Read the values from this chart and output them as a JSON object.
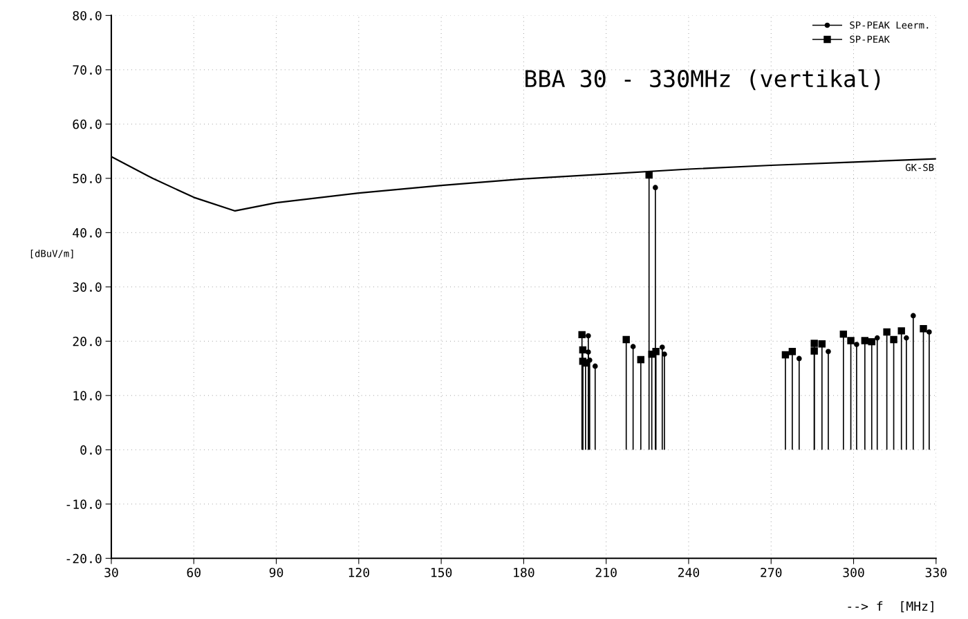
{
  "chart_data": {
    "type": "lollipop",
    "title": "BBA 30 - 330MHz (vertikal)",
    "xlabel": "--> f  [MHz]",
    "ylabel": "[dBuV/m]",
    "xlim": [
      30,
      330
    ],
    "ylim": [
      -20,
      80
    ],
    "xticks": [
      30,
      60,
      90,
      120,
      150,
      180,
      210,
      240,
      270,
      300,
      330
    ],
    "yticks": [
      {
        "value": -20,
        "label": "-20.0"
      },
      {
        "value": -10,
        "label": "-10.0"
      },
      {
        "value": 0,
        "label": "0.0"
      },
      {
        "value": 10,
        "label": "10.0"
      },
      {
        "value": 20,
        "label": "20.0"
      },
      {
        "value": 30,
        "label": "30.0"
      },
      {
        "value": 40,
        "label": "40.0"
      },
      {
        "value": 50,
        "label": "50.0"
      },
      {
        "value": 60,
        "label": "60.0"
      },
      {
        "value": 70,
        "label": "70.0"
      },
      {
        "value": 80,
        "label": "80.0"
      }
    ],
    "grid": true,
    "legend": "top right",
    "series": [
      {
        "name": "GK-SB",
        "type": "line",
        "color": "#000000",
        "marker": "none",
        "x": [
          30,
          45,
          60,
          75,
          90,
          120,
          150,
          180,
          210,
          240,
          270,
          300,
          330
        ],
        "values": [
          54,
          50,
          46.5,
          44,
          45.5,
          47.3,
          48.7,
          49.9,
          50.8,
          51.7,
          52.4,
          53.0,
          53.6
        ]
      },
      {
        "name": "SP-PEAK Leerm.",
        "color": "#000000",
        "marker": "circle",
        "x": [
          203.5,
          203.5,
          204,
          206,
          219.8,
          227.9,
          230.4,
          231.2,
          280.2,
          290.8,
          301.1,
          308.6,
          319.2,
          321.7,
          327.5
        ],
        "values": [
          21.0,
          18.0,
          16.5,
          15.4,
          19.0,
          48.3,
          18.9,
          17.6,
          16.8,
          18.1,
          19.4,
          20.6,
          20.6,
          24.7,
          21.7
        ]
      },
      {
        "name": "SP-PEAK",
        "color": "#000000",
        "marker": "square",
        "x": [
          201.2,
          201.5,
          201.5,
          202.5,
          217.3,
          222.6,
          225.6,
          226.6,
          228.1,
          275.2,
          277.7,
          285.7,
          285.7,
          288.5,
          296.3,
          299.0,
          304.1,
          306.6,
          312.1,
          314.6,
          317.4,
          325.4
        ],
        "values": [
          21.2,
          18.4,
          16.3,
          16.0,
          20.3,
          16.6,
          50.6,
          17.6,
          18.1,
          17.5,
          18.1,
          19.6,
          18.2,
          19.5,
          21.3,
          20.1,
          20.1,
          19.9,
          21.7,
          20.3,
          21.9,
          22.3
        ]
      }
    ]
  }
}
